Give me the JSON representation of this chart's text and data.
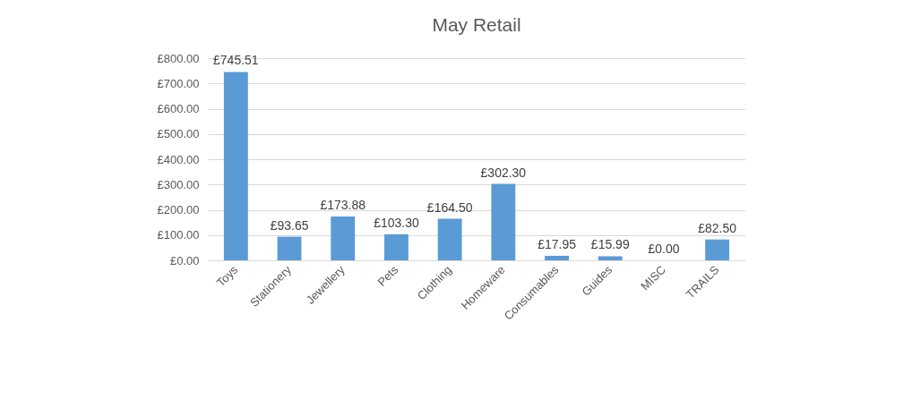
{
  "chart_data": {
    "type": "bar",
    "title": "May Retail",
    "categories": [
      "Toys",
      "Stationery",
      "Jewellery",
      "Pets",
      "Clothing",
      "Homeware",
      "Consumables",
      "Guides",
      "MISC",
      "TRAILS"
    ],
    "values": [
      745.51,
      93.65,
      173.88,
      103.3,
      164.5,
      302.3,
      17.95,
      15.99,
      0.0,
      82.5
    ],
    "value_labels": [
      "£745.51",
      "£93.65",
      "£173.88",
      "£103.30",
      "£164.50",
      "£302.30",
      "£17.95",
      "£15.99",
      "£0.00",
      "£82.50"
    ],
    "color": "#5b9bd5",
    "ylim": [
      0,
      800
    ],
    "yticks": [
      {
        "value": 0,
        "label": "£0.00"
      },
      {
        "value": 100,
        "label": "£100.00"
      },
      {
        "value": 200,
        "label": "£200.00"
      },
      {
        "value": 300,
        "label": "£300.00"
      },
      {
        "value": 400,
        "label": "£400.00"
      },
      {
        "value": 500,
        "label": "£500.00"
      },
      {
        "value": 600,
        "label": "£600.00"
      },
      {
        "value": 700,
        "label": "£700.00"
      },
      {
        "value": 800,
        "label": "£800.00"
      }
    ],
    "grid": "y"
  }
}
